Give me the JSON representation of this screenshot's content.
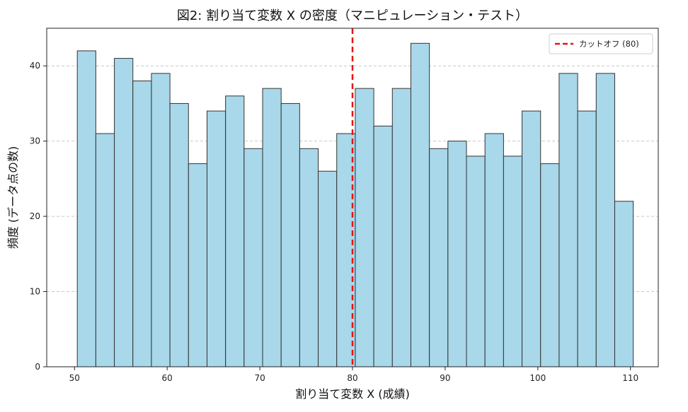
{
  "chart_data": {
    "type": "bar",
    "title": "図2: 割り当て変数 X の密度（マニピュレーション・テスト）",
    "xlabel": "割り当て変数 X (成績)",
    "ylabel": "頻度 (データ点の数)",
    "xlim": [
      47.0,
      113.0
    ],
    "ylim": [
      0,
      45
    ],
    "xticks": [
      50,
      60,
      70,
      80,
      90,
      100,
      110
    ],
    "yticks": [
      0,
      10,
      20,
      30,
      40
    ],
    "bin_edges_start": 50.3,
    "bin_width": 2.0,
    "values": [
      42,
      31,
      41,
      38,
      39,
      35,
      27,
      34,
      36,
      29,
      37,
      35,
      29,
      26,
      31,
      37,
      32,
      37,
      43,
      29,
      30,
      28,
      31,
      28,
      34,
      27,
      39,
      34,
      39,
      22
    ],
    "bar_color": "#a8d8ea",
    "bar_edge_color": "#333333",
    "grid": "y-dashed",
    "cutoff": {
      "value": 80,
      "label": "カットオフ (80)",
      "color": "#ee1111"
    },
    "legend_position": "top-right"
  }
}
